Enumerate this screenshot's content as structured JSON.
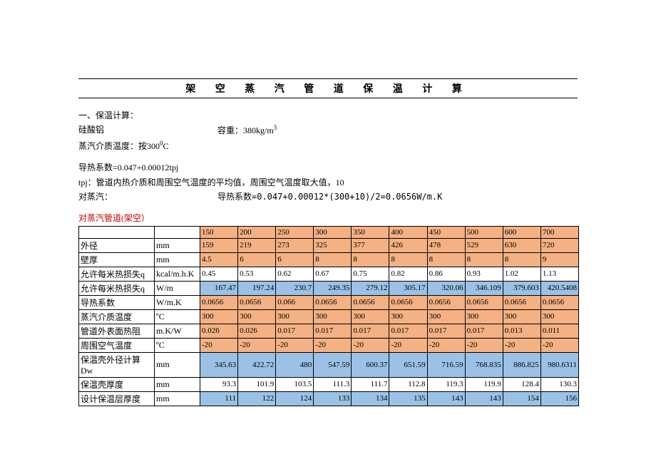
{
  "title": "架 空 蒸 汽 管 道 保 温 计 算",
  "p1": "一、保温计算：",
  "p2_left": "硅酸铝",
  "p2_right_a": "容重：380kg/m",
  "p2_right_sup": "3",
  "p3_a": "蒸汽介质温度：按300",
  "p3_sup": "0",
  "p3_b": "C",
  "p4": "导热系数=0.047+0.00012tpj",
  "p5": "tpj：管道内热介质和周围空气温度的平均值，周围空气温度取大值，10",
  "p6_left": "对蒸汽：",
  "p6_right": "导热系数=0.047+0.00012*(300+10)/2=0.0656W/m.K",
  "red": "对蒸汽管道(架空）",
  "colors": {
    "orange": "#f4b183",
    "blue": "#9bc2e6",
    "white": "#ffffff"
  },
  "hdr": [
    "150",
    "200",
    "250",
    "300",
    "350",
    "400",
    "450",
    "500",
    "600",
    "700"
  ],
  "rows": [
    {
      "label": "外径",
      "unit": "mm",
      "fill": "orange",
      "align": "l",
      "cells": [
        "159",
        "219",
        "273",
        "325",
        "377",
        "426",
        "478",
        "529",
        "630",
        "720"
      ]
    },
    {
      "label": "壁厚",
      "unit": "mm",
      "fill": "orange",
      "align": "l",
      "cells": [
        "4.5",
        "6",
        "6",
        "8",
        "8",
        "8",
        "8",
        "8",
        "8",
        "9"
      ]
    },
    {
      "label": "允许每米热损失q",
      "unit": "kcal/m.h.K",
      "fill": "white",
      "align": "l",
      "cells": [
        "0.45",
        "0.53",
        "0.62",
        "0.67",
        "0.75",
        "0.82",
        "0.86",
        "0.93",
        "1.02",
        "1.13"
      ]
    },
    {
      "label": "允许每米热损失q",
      "unit": "W/m",
      "fill": "blue",
      "align": "r",
      "cells": [
        "167.47",
        "197.24",
        "230.7",
        "249.35",
        "279.12",
        "305.17",
        "320.06",
        "346.109",
        "379.603",
        "420.5408"
      ]
    },
    {
      "label": "导热系数",
      "unit": "W/m.K",
      "fill": "orange",
      "align": "l",
      "cells": [
        "0.0656",
        "0.0656",
        "0.066",
        "0.0656",
        "0.0656",
        "0.0656",
        "0.0656",
        "0.0656",
        "0.0656",
        "0.0656"
      ]
    },
    {
      "label": "蒸汽介质温度",
      "unit": "ºC",
      "fill": "orange",
      "align": "l",
      "cells": [
        "300",
        "300",
        "300",
        "300",
        "300",
        "300",
        "300",
        "300",
        "300",
        "300"
      ]
    },
    {
      "label": "管道外表面热阻",
      "unit": "m.K/W",
      "fill": "orange",
      "align": "l",
      "cells": [
        "0.026",
        "0.026",
        "0.017",
        "0.017",
        "0.017",
        "0.017",
        "0.017",
        "0.017",
        "0.013",
        "0.011"
      ]
    },
    {
      "label": "周围空气温度",
      "unit": "ºC",
      "fill": "orange",
      "align": "l",
      "cells": [
        "-20",
        "-20",
        "-20",
        "-20",
        "-20",
        "-20",
        "-20",
        "-20",
        "-20",
        "-20"
      ]
    },
    {
      "label": "保温壳外径计算Dw",
      "unit": "mm",
      "fill": "blue",
      "align": "r",
      "cells": [
        "345.63",
        "422.72",
        "480",
        "547.59",
        "600.37",
        "651.59",
        "716.59",
        "768.835",
        "886.825",
        "980.6311"
      ]
    },
    {
      "label": "保温壳厚度",
      "unit": "mm",
      "fill": "white",
      "align": "r",
      "cells": [
        "93.3",
        "101.9",
        "103.5",
        "111.3",
        "111.7",
        "112.8",
        "119.3",
        "119.9",
        "128.4",
        "130.3"
      ]
    },
    {
      "label": "设计保温层厚度",
      "unit": "mm",
      "fill": "blue",
      "align": "r",
      "cells": [
        "111",
        "122",
        "124",
        "133",
        "134",
        "135",
        "143",
        "143",
        "154",
        "156"
      ]
    }
  ]
}
